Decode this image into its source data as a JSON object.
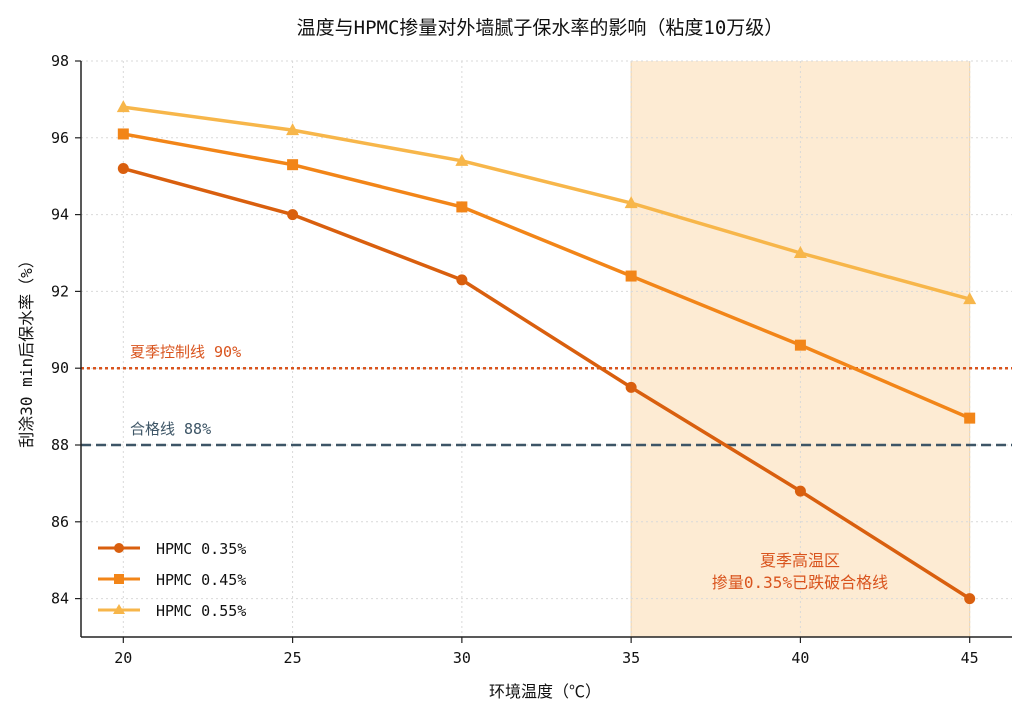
{
  "chart_data": {
    "type": "line",
    "title": "温度与HPMC掺量对外墙腻子保水率的影响（粘度10万级）",
    "xlabel": "环境温度（℃）",
    "ylabel": "刮涂30 min后保水率（%）",
    "x": [
      20,
      25,
      30,
      35,
      40,
      45
    ],
    "xlim": [
      18.75,
      46.25
    ],
    "ylim": [
      83,
      98
    ],
    "xticks": [
      "20",
      "25",
      "30",
      "35",
      "40",
      "45"
    ],
    "yticks": [
      "84",
      "86",
      "88",
      "90",
      "92",
      "94",
      "96",
      "98"
    ],
    "grid": true,
    "legend_position": "lower-left",
    "series": [
      {
        "name": "HPMC 0.35%",
        "values": [
          95.2,
          94.0,
          92.3,
          89.5,
          86.8,
          84.0
        ],
        "color": "#d95f0e",
        "marker": "circle"
      },
      {
        "name": "HPMC 0.45%",
        "values": [
          96.1,
          95.3,
          94.2,
          92.4,
          90.6,
          88.7
        ],
        "color": "#f28518",
        "marker": "square"
      },
      {
        "name": "HPMC 0.55%",
        "values": [
          96.8,
          96.2,
          95.4,
          94.3,
          93.0,
          91.8
        ],
        "color": "#f7b64a",
        "marker": "triangle"
      }
    ],
    "reference_lines": [
      {
        "label": "夏季控制线 90%",
        "y": 90,
        "color": "#d9541e",
        "style": "dotted"
      },
      {
        "label": "合格线 88%",
        "y": 88,
        "color": "#3d5566",
        "style": "dashed"
      }
    ],
    "shaded_region": {
      "x_range": [
        35,
        45
      ],
      "color": "#fdebd3",
      "label_line1": "夏季高温区",
      "label_line2": "掺量0.35%已跌破合格线",
      "label_color": "#d9541e"
    }
  }
}
